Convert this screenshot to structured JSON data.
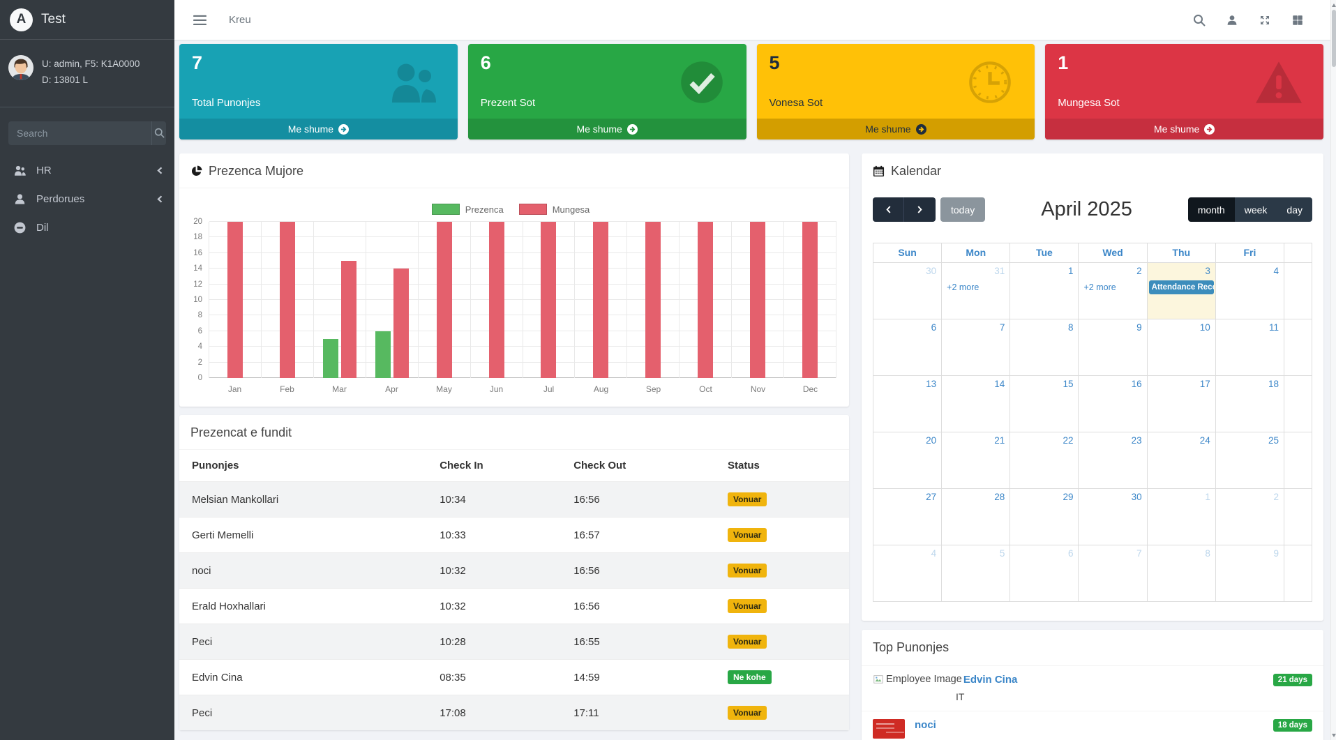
{
  "brand": {
    "logo_letter": "A",
    "title": "Test"
  },
  "sidebar": {
    "user": {
      "line1": "U: admin, F5: K1A0000",
      "line2": "D: 13801 L"
    },
    "search_placeholder": "Search",
    "menu": [
      {
        "label": "HR",
        "icon": "users-icon",
        "has_children": true
      },
      {
        "label": "Perdorues",
        "icon": "user-icon",
        "has_children": true
      },
      {
        "label": "Dil",
        "icon": "sign-out-icon",
        "has_children": false
      }
    ]
  },
  "navbar": {
    "breadcrumb": "Kreu",
    "icons": [
      "search-icon",
      "user-icon",
      "fullscreen-icon",
      "grid-icon"
    ]
  },
  "info_boxes": [
    {
      "value": "7",
      "label": "Total Punonjes",
      "link_label": "Me shume",
      "icon": "users-icon",
      "color": "#18a2b4",
      "footer_color": "#148ea1",
      "text_style": "light"
    },
    {
      "value": "6",
      "label": "Prezent Sot",
      "link_label": "Me shume",
      "icon": "check-circle-icon",
      "color": "#28a745",
      "footer_color": "#23923d",
      "text_style": "light"
    },
    {
      "value": "5",
      "label": "Vonesa Sot",
      "link_label": "Me shume",
      "icon": "clock-icon",
      "color": "#ffc107",
      "footer_color": "#d39e00",
      "text_style": "dark"
    },
    {
      "value": "1",
      "label": "Mungesa Sot",
      "link_label": "Me shume",
      "icon": "warning-icon",
      "color": "#dc3545",
      "footer_color": "#c62f3f",
      "text_style": "light"
    }
  ],
  "chart_card": {
    "title": "Prezenca Mujore"
  },
  "chart_data": {
    "type": "bar",
    "title": "Prezenca Mujore",
    "categories": [
      "Jan",
      "Feb",
      "Mar",
      "Apr",
      "May",
      "Jun",
      "Jul",
      "Aug",
      "Sep",
      "Oct",
      "Nov",
      "Dec"
    ],
    "series": [
      {
        "name": "Prezenca",
        "color": "#57b960",
        "values": [
          0,
          0,
          5,
          6,
          0,
          0,
          0,
          0,
          0,
          0,
          0,
          0
        ]
      },
      {
        "name": "Mungesa",
        "color": "#e4606d",
        "values": [
          20,
          20,
          15,
          14,
          20,
          20,
          20,
          20,
          20,
          20,
          20,
          20
        ]
      }
    ],
    "ylim": [
      0,
      20
    ],
    "ytick_step": 2,
    "grid": true,
    "legend_position": "top-center"
  },
  "table_card": {
    "title": "Prezencat e fundit",
    "columns": [
      "Punonjes",
      "Check In",
      "Check Out",
      "Status"
    ],
    "rows": [
      {
        "punonjes": "Melsian Mankollari",
        "check_in": "10:34",
        "check_out": "16:56",
        "status": "Vonuar",
        "status_type": "warning"
      },
      {
        "punonjes": "Gerti Memelli",
        "check_in": "10:33",
        "check_out": "16:57",
        "status": "Vonuar",
        "status_type": "warning"
      },
      {
        "punonjes": "noci",
        "check_in": "10:32",
        "check_out": "16:56",
        "status": "Vonuar",
        "status_type": "warning"
      },
      {
        "punonjes": "Erald Hoxhallari",
        "check_in": "10:32",
        "check_out": "16:56",
        "status": "Vonuar",
        "status_type": "warning"
      },
      {
        "punonjes": "Peci",
        "check_in": "10:28",
        "check_out": "16:55",
        "status": "Vonuar",
        "status_type": "warning"
      },
      {
        "punonjes": "Edvin Cina",
        "check_in": "08:35",
        "check_out": "14:59",
        "status": "Ne kohe",
        "status_type": "success"
      },
      {
        "punonjes": "Peci",
        "check_in": "17:08",
        "check_out": "17:11",
        "status": "Vonuar",
        "status_type": "warning"
      }
    ]
  },
  "calendar": {
    "title": "Kalendar",
    "toolbar": {
      "today_label": "today",
      "title": "April 2025",
      "views": [
        "month",
        "week",
        "day"
      ],
      "active_view": "month"
    },
    "day_headers": [
      "Sun",
      "Mon",
      "Tue",
      "Wed",
      "Thu",
      "Fri"
    ],
    "event_color": "#3c8dbc",
    "weeks": [
      [
        {
          "day": "30",
          "muted": true
        },
        {
          "day": "31",
          "muted": true,
          "more_link": "+2 more"
        },
        {
          "day": "1"
        },
        {
          "day": "2",
          "more_link": "+2 more"
        },
        {
          "day": "3",
          "today": true,
          "event": "Attendance Reco"
        },
        {
          "day": "4"
        }
      ],
      [
        {
          "day": "6"
        },
        {
          "day": "7"
        },
        {
          "day": "8"
        },
        {
          "day": "9"
        },
        {
          "day": "10"
        },
        {
          "day": "11"
        }
      ],
      [
        {
          "day": "13"
        },
        {
          "day": "14"
        },
        {
          "day": "15"
        },
        {
          "day": "16"
        },
        {
          "day": "17"
        },
        {
          "day": "18"
        }
      ],
      [
        {
          "day": "20"
        },
        {
          "day": "21"
        },
        {
          "day": "22"
        },
        {
          "day": "23"
        },
        {
          "day": "24"
        },
        {
          "day": "25"
        }
      ],
      [
        {
          "day": "27"
        },
        {
          "day": "28"
        },
        {
          "day": "29"
        },
        {
          "day": "30"
        },
        {
          "day": "1",
          "muted": true
        },
        {
          "day": "2",
          "muted": true
        }
      ],
      [
        {
          "day": "4",
          "muted": true
        },
        {
          "day": "5",
          "muted": true
        },
        {
          "day": "6",
          "muted": true
        },
        {
          "day": "7",
          "muted": true
        },
        {
          "day": "8",
          "muted": true
        },
        {
          "day": "9",
          "muted": true
        }
      ]
    ]
  },
  "top_punonjes": {
    "title": "Top Punonjes",
    "items": [
      {
        "name": "Edvin Cina",
        "dept": "IT",
        "badge": "21 days",
        "image_alt": "Employee Image",
        "image_state": "broken"
      },
      {
        "name": "noci",
        "dept": "",
        "badge": "18 days",
        "image_alt": "",
        "image_state": "thumbnail"
      }
    ]
  },
  "colors": {
    "accent_blue": "#337ab7",
    "badge_warning": "#f0b40d",
    "badge_success": "#28a745",
    "today_bg": "#fcf6dd",
    "sidebar_bg": "#343a40"
  }
}
